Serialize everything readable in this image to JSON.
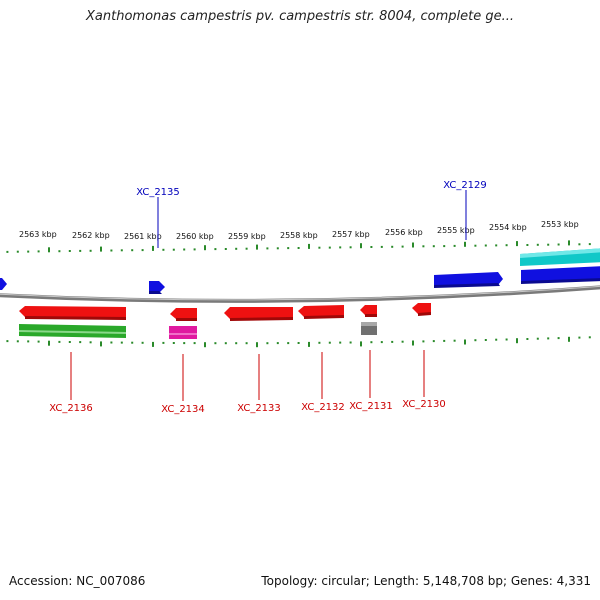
{
  "header": {
    "title": "Xanthomonas campestris pv. campestris str. 8004, complete ge..."
  },
  "footer": {
    "accession": "Accession: NC_007086",
    "summary": "Topology: circular; Length: 5,148,708 bp; Genes: 4,331"
  },
  "ruler": {
    "ticks": [
      "2563 kbp",
      "2562 kbp",
      "2561 kbp",
      "2560 kbp",
      "2559 kbp",
      "2558 kbp",
      "2557 kbp",
      "2556 kbp",
      "2555 kbp",
      "2554 kbp",
      "2553 kbp"
    ]
  },
  "colors": {
    "backbone": "#888888",
    "forward_ruler": "#2a8a2a",
    "reverse_label": "#cc0000",
    "forward_label": "#0000bb",
    "red": "#ee1111",
    "blue": "#1010e0",
    "cyan": "#10c8c8",
    "green": "#2aa82a",
    "magenta": "#e01aa0",
    "gray": "#707070"
  },
  "labels": {
    "forward": [
      "XC_2135",
      "XC_2129"
    ],
    "reverse": [
      "XC_2136",
      "XC_2134",
      "XC_2133",
      "XC_2132",
      "XC_2131",
      "XC_2130"
    ]
  }
}
